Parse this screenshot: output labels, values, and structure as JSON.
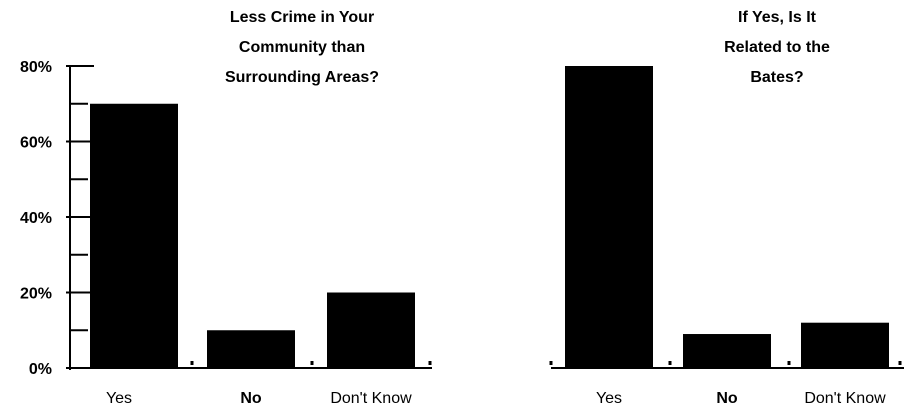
{
  "chart_data": [
    {
      "type": "bar",
      "title_lines": [
        "Less Crime in Your",
        "Community than",
        "Surrounding Areas?"
      ],
      "categories": [
        "Yes",
        "No",
        "Don't Know"
      ],
      "values": [
        70,
        10,
        20
      ],
      "unit": "%",
      "ylim": [
        0,
        80
      ],
      "yticks": [
        "0%",
        "20%",
        "40%",
        "60%",
        "80%"
      ],
      "ytick_values": [
        0,
        20,
        40,
        60,
        80
      ],
      "grid": false,
      "legend": "none",
      "bar_color": "#000000"
    },
    {
      "type": "bar",
      "title_lines": [
        "If Yes, Is It",
        "Related to the",
        "Bates?"
      ],
      "categories": [
        "Yes",
        "No",
        "Don't Know"
      ],
      "values": [
        80,
        9,
        12
      ],
      "unit": "%",
      "ylim": [
        0,
        80
      ],
      "grid": false,
      "legend": "none",
      "bar_color": "#000000"
    }
  ]
}
